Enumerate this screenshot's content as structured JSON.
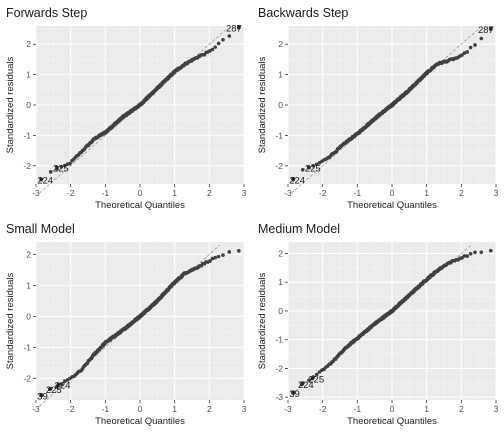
{
  "chart_data": [
    {
      "type": "scatter",
      "title": "Forwards Step",
      "xlabel": "Theoretical Quantiles",
      "ylabel": "Standardized residuals",
      "xlim": [
        -3,
        3
      ],
      "ylim": [
        -2.6,
        2.6
      ],
      "x_ticks": [
        "-3",
        "-2",
        "-1",
        "0",
        "1",
        "2",
        "3"
      ],
      "x_tick_values": [
        -3,
        -2,
        -1,
        0,
        1,
        2,
        3
      ],
      "y_ticks": [
        "-2",
        "-1",
        "0",
        "1",
        "2"
      ],
      "y_tick_values": [
        -2,
        -1,
        0,
        1,
        2
      ],
      "reference_line": [
        [
          -2.9,
          -2.9
        ],
        [
          2.5,
          2.5
        ]
      ],
      "curve": [
        [
          -2.85,
          -2.45
        ],
        [
          -2.6,
          -2.2
        ],
        [
          -2.25,
          -2.05
        ],
        [
          -2.0,
          -1.9
        ],
        [
          -1.7,
          -1.55
        ],
        [
          -1.3,
          -1.1
        ],
        [
          -1.0,
          -0.9
        ],
        [
          -0.5,
          -0.4
        ],
        [
          0.0,
          0.0
        ],
        [
          0.5,
          0.55
        ],
        [
          1.0,
          1.1
        ],
        [
          1.3,
          1.35
        ],
        [
          1.7,
          1.6
        ],
        [
          2.0,
          1.75
        ],
        [
          2.3,
          2.05
        ],
        [
          2.55,
          2.25
        ],
        [
          2.85,
          2.55
        ]
      ],
      "outliers": [
        {
          "label": "224",
          "x": -2.85,
          "y": -2.45
        },
        {
          "label": "225",
          "x": -2.4,
          "y": -2.05
        },
        {
          "label": "287",
          "x": 2.85,
          "y": 2.55
        }
      ],
      "grid": true
    },
    {
      "type": "scatter",
      "title": "Backwards Step",
      "xlabel": "Theoretical Quantiles",
      "ylabel": "Standardized residuals",
      "xlim": [
        -3,
        3
      ],
      "ylim": [
        -2.6,
        2.6
      ],
      "x_ticks": [
        "-3",
        "-2",
        "-1",
        "0",
        "1",
        "2",
        "3"
      ],
      "x_tick_values": [
        -3,
        -2,
        -1,
        0,
        1,
        2,
        3
      ],
      "y_ticks": [
        "-2",
        "-1",
        "0",
        "1",
        "2"
      ],
      "y_tick_values": [
        -2,
        -1,
        0,
        1,
        2
      ],
      "reference_line": [
        [
          -2.9,
          -2.9
        ],
        [
          2.5,
          2.5
        ]
      ],
      "curve": [
        [
          -2.85,
          -2.45
        ],
        [
          -2.6,
          -2.15
        ],
        [
          -2.25,
          -2.0
        ],
        [
          -2.0,
          -1.85
        ],
        [
          -1.7,
          -1.6
        ],
        [
          -1.3,
          -1.2
        ],
        [
          -1.0,
          -0.95
        ],
        [
          -0.5,
          -0.45
        ],
        [
          0.0,
          0.0
        ],
        [
          0.5,
          0.5
        ],
        [
          1.0,
          1.05
        ],
        [
          1.3,
          1.35
        ],
        [
          1.6,
          1.45
        ],
        [
          2.0,
          1.6
        ],
        [
          2.3,
          1.9
        ],
        [
          2.55,
          2.15
        ],
        [
          2.85,
          2.5
        ]
      ],
      "outliers": [
        {
          "label": "224",
          "x": -2.85,
          "y": -2.45
        },
        {
          "label": "225",
          "x": -2.4,
          "y": -2.05
        },
        {
          "label": "287",
          "x": 2.85,
          "y": 2.5
        }
      ],
      "grid": true
    },
    {
      "type": "scatter",
      "title": "Small Model",
      "xlabel": "Theoretical Quantiles",
      "ylabel": "Standardized residuals",
      "xlim": [
        -3,
        3
      ],
      "ylim": [
        -2.7,
        2.4
      ],
      "x_ticks": [
        "-3",
        "-2",
        "-1",
        "0",
        "1",
        "2",
        "3"
      ],
      "x_tick_values": [
        -3,
        -2,
        -1,
        0,
        1,
        2,
        3
      ],
      "y_ticks": [
        "-2",
        "-1",
        "0",
        "1",
        "2"
      ],
      "y_tick_values": [
        -2,
        -1,
        0,
        1,
        2
      ],
      "reference_line": [
        [
          -2.9,
          -2.9
        ],
        [
          2.3,
          2.3
        ]
      ],
      "curve": [
        [
          -2.85,
          -2.55
        ],
        [
          -2.6,
          -2.35
        ],
        [
          -2.3,
          -2.2
        ],
        [
          -2.0,
          -2.0
        ],
        [
          -1.7,
          -1.75
        ],
        [
          -1.3,
          -1.2
        ],
        [
          -1.0,
          -0.85
        ],
        [
          -0.5,
          -0.45
        ],
        [
          0.0,
          0.0
        ],
        [
          0.5,
          0.5
        ],
        [
          1.0,
          1.1
        ],
        [
          1.3,
          1.4
        ],
        [
          1.6,
          1.55
        ],
        [
          2.0,
          1.8
        ],
        [
          2.3,
          1.95
        ],
        [
          2.55,
          2.05
        ],
        [
          2.85,
          2.1
        ]
      ],
      "outliers": [
        {
          "label": "39",
          "x": -2.85,
          "y": -2.55
        },
        {
          "label": "225",
          "x": -2.6,
          "y": -2.35
        },
        {
          "label": "224",
          "x": -2.35,
          "y": -2.2
        }
      ],
      "grid": true
    },
    {
      "type": "scatter",
      "title": "Medium Model",
      "xlabel": "Theoretical Quantiles",
      "ylabel": "Standardized residuals",
      "xlim": [
        -3,
        3
      ],
      "ylim": [
        -3.1,
        2.4
      ],
      "x_ticks": [
        "-3",
        "-2",
        "-1",
        "0",
        "1",
        "2",
        "3"
      ],
      "x_tick_values": [
        -3,
        -2,
        -1,
        0,
        1,
        2,
        3
      ],
      "y_ticks": [
        "-3",
        "-2",
        "-1",
        "0",
        "1",
        "2"
      ],
      "y_tick_values": [
        -3,
        -2,
        -1,
        0,
        1,
        2
      ],
      "reference_line": [
        [
          -2.9,
          -2.9
        ],
        [
          2.3,
          2.3
        ]
      ],
      "curve": [
        [
          -2.85,
          -2.85
        ],
        [
          -2.6,
          -2.55
        ],
        [
          -2.3,
          -2.35
        ],
        [
          -2.0,
          -2.05
        ],
        [
          -1.7,
          -1.75
        ],
        [
          -1.3,
          -1.25
        ],
        [
          -1.0,
          -0.95
        ],
        [
          -0.5,
          -0.45
        ],
        [
          0.0,
          0.0
        ],
        [
          0.5,
          0.55
        ],
        [
          1.0,
          1.1
        ],
        [
          1.3,
          1.4
        ],
        [
          1.6,
          1.65
        ],
        [
          2.0,
          1.85
        ],
        [
          2.3,
          2.0
        ],
        [
          2.55,
          2.05
        ],
        [
          2.85,
          2.1
        ]
      ],
      "outliers": [
        {
          "label": "39",
          "x": -2.85,
          "y": -2.85
        },
        {
          "label": "224",
          "x": -2.6,
          "y": -2.55
        },
        {
          "label": "225",
          "x": -2.3,
          "y": -2.35
        }
      ],
      "grid": true
    }
  ]
}
